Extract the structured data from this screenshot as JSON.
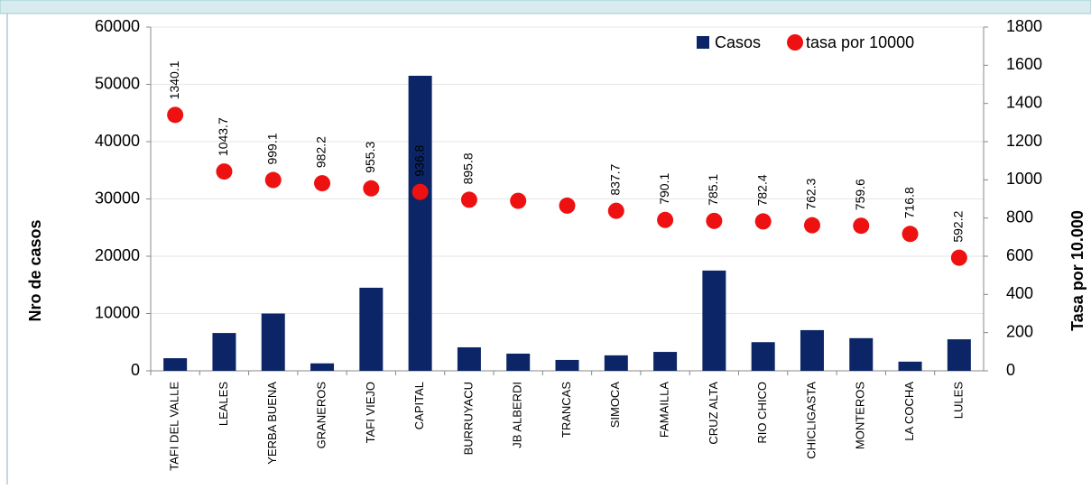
{
  "chart_data": {
    "type": "bar-scatter",
    "categories": [
      "TAFI DEL VALLE",
      "LEALES",
      "YERBA BUENA",
      "GRANEROS",
      "TAFI VIEJO",
      "CAPITAL",
      "BURRUYACU",
      "JB ALBERDI",
      "TRANCAS",
      "SIMOCA",
      "FAMAILLA",
      "CRUZ ALTA",
      "RIO CHICO",
      "CHICLIGASTA",
      "MONTEROS",
      "LA COCHA",
      "LULES"
    ],
    "series": [
      {
        "name": "Casos",
        "type": "bar",
        "color": "#0b2566",
        "axis": "y",
        "values": [
          2200,
          6600,
          10000,
          1300,
          14500,
          51500,
          4100,
          3000,
          1900,
          2700,
          3300,
          17500,
          5000,
          7100,
          5700,
          1600,
          5500
        ]
      },
      {
        "name": "tasa por 10000",
        "type": "scatter",
        "color": "#ee1111",
        "axis": "y2",
        "values": [
          1340.1,
          1043.7,
          999.1,
          982.2,
          955.3,
          936.8,
          895.8,
          890,
          865,
          837.7,
          790.1,
          785.1,
          782.4,
          762.3,
          759.6,
          716.8,
          592.2
        ],
        "value_labels": [
          "1340.1",
          "1043.7",
          "999.1",
          "982.2",
          "955.3",
          "936.8",
          "895.8",
          null,
          null,
          "837.7",
          "790.1",
          "785.1",
          "782.4",
          "762.3",
          "759.6",
          "716.8",
          "592.2"
        ]
      }
    ],
    "ylabel": "Nro de casos",
    "y2label": "Tasa por 10.000",
    "ylim": [
      0,
      60000
    ],
    "yticks": [
      0,
      10000,
      20000,
      30000,
      40000,
      50000,
      60000
    ],
    "y2lim": [
      0,
      1800
    ],
    "y2ticks": [
      0,
      200,
      400,
      600,
      800,
      1000,
      1200,
      1400,
      1600,
      1800
    ],
    "grid": true,
    "legend": "top-right"
  }
}
